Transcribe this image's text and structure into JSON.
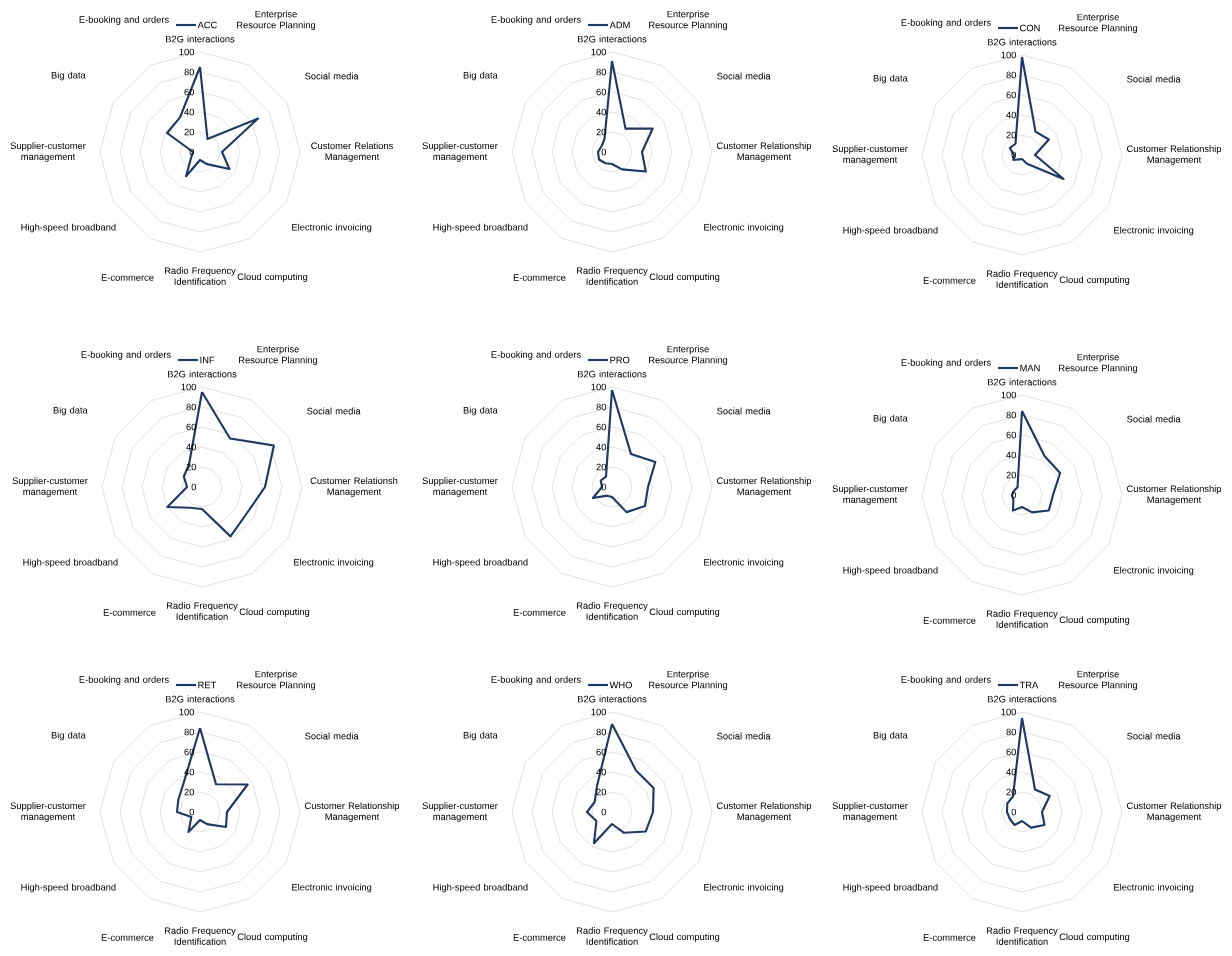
{
  "chart_data": [
    {
      "type": "radar",
      "categories": [
        "B2G interactions",
        "Enterprise Resource Planning",
        "Social media",
        "Customer Relations Management",
        "Electronic invoicing",
        "Cloud computing",
        "Radio Frequency Identification",
        "E-commerce",
        "High-speed broadband",
        "Supplier-customer management",
        "Big data",
        "E-booking and orders"
      ],
      "series": [
        {
          "name": "ACC",
          "color": "#1f3864",
          "values": [
            85,
            15,
            67,
            22,
            34,
            14,
            8,
            28,
            10,
            7,
            38,
            40
          ]
        }
      ],
      "ylim": [
        0,
        100
      ],
      "yticks": [
        0,
        20,
        40,
        60,
        80,
        100
      ],
      "grid": true,
      "legend": "top"
    },
    {
      "type": "radar",
      "categories": [
        "B2G interactions",
        "Enterprise Resource Planning",
        "Social media",
        "Customer Relationship Management",
        "Electronic invoicing",
        "Cloud computing",
        "Radio Frequency Identification",
        "E-commerce",
        "High-speed broadband",
        "Supplier-customer management",
        "Big data",
        "E-booking and orders"
      ],
      "series": [
        {
          "name": "ADM",
          "color": "#1f3864",
          "values": [
            91,
            27,
            47,
            30,
            39,
            20,
            12,
            13,
            15,
            14,
            12,
            15
          ]
        }
      ],
      "ylim": [
        0,
        100
      ],
      "yticks": [
        0,
        20,
        40,
        60,
        80,
        100
      ],
      "grid": true,
      "legend": "top"
    },
    {
      "type": "radar",
      "categories": [
        "B2G interactions",
        "Enterprise Resource Planning",
        "Social media",
        "Customer Relationship Management",
        "Electronic invoicing",
        "Cloud computing",
        "Radio Frequency Identification",
        "E-commerce",
        "High-speed broadband",
        "Supplier-customer management",
        "Big data",
        "E-booking and orders"
      ],
      "series": [
        {
          "name": "CON",
          "color": "#1f3864",
          "values": [
            98,
            27,
            31,
            13,
            48,
            10,
            4,
            5,
            10,
            8,
            14,
            13
          ]
        }
      ],
      "ylim": [
        0,
        100
      ],
      "yticks": [
        0,
        20,
        40,
        60,
        80,
        100
      ],
      "grid": true,
      "legend": "top"
    },
    {
      "type": "radar",
      "categories": [
        "B2G interactions",
        "Enterprise Resource Planning",
        "Social media",
        "Customer Relationsh Management",
        "Electronic invoicing",
        "Cloud computing",
        "Radio Frequency Identification",
        "E-commerce",
        "High-speed broadband",
        "Supplier-customer management",
        "Big data",
        "E-booking and orders"
      ],
      "series": [
        {
          "name": "INF",
          "color": "#1f3864",
          "values": [
            95,
            56,
            83,
            63,
            52,
            57,
            22,
            24,
            40,
            15,
            21,
            26
          ]
        }
      ],
      "ylim": [
        0,
        100
      ],
      "yticks": [
        0,
        20,
        40,
        60,
        80,
        100
      ],
      "grid": true,
      "legend": "top"
    },
    {
      "type": "radar",
      "categories": [
        "B2G interactions",
        "Enterprise Resource Planning",
        "Social media",
        "Customer Relationship Management",
        "Electronic invoicing",
        "Cloud computing",
        "Radio Frequency Identification",
        "E-commerce",
        "High-speed broadband",
        "Supplier-customer management",
        "Big data",
        "E-booking and orders"
      ],
      "series": [
        {
          "name": "PRO",
          "color": "#1f3864",
          "values": [
            97,
            38,
            50,
            36,
            38,
            29,
            10,
            10,
            22,
            10,
            13,
            12
          ]
        }
      ],
      "ylim": [
        0,
        100
      ],
      "yticks": [
        0,
        20,
        40,
        60,
        80,
        100
      ],
      "grid": true,
      "legend": "top"
    },
    {
      "type": "radar",
      "categories": [
        "B2G interactions",
        "Enterprise Resource Planning",
        "Social media",
        "Customer Relationship Management",
        "Electronic invoicing",
        "Cloud computing",
        "Radio Frequency Identification",
        "E-commerce",
        "High-speed broadband",
        "Supplier-customer management",
        "Big data",
        "E-booking and orders"
      ],
      "series": [
        {
          "name": "MAN",
          "color": "#1f3864",
          "values": [
            84,
            45,
            44,
            31,
            31,
            20,
            12,
            18,
            10,
            10,
            9,
            9
          ]
        }
      ],
      "ylim": [
        0,
        100
      ],
      "yticks": [
        0,
        20,
        40,
        60,
        80,
        100
      ],
      "grid": true,
      "legend": "top"
    },
    {
      "type": "radar",
      "categories": [
        "B2G interactions",
        "Enterprise Resource Planning",
        "Social media",
        "Customer Relationship Management",
        "Electronic invoicing",
        "Cloud computing",
        "Radio Frequency Identification",
        "E-commerce",
        "High-speed broadband",
        "Supplier-customer management",
        "Big data",
        "E-booking and orders"
      ],
      "series": [
        {
          "name": "RET",
          "color": "#1f3864",
          "values": [
            84,
            32,
            55,
            27,
            30,
            14,
            8,
            23,
            10,
            23,
            25,
            33
          ]
        }
      ],
      "ylim": [
        0,
        100
      ],
      "yticks": [
        0,
        20,
        40,
        60,
        80,
        100
      ],
      "grid": true,
      "legend": "top"
    },
    {
      "type": "radar",
      "categories": [
        "B2G interactions",
        "Enterprise Resource Planning",
        "Social media",
        "Customer Relationship Management",
        "Electronic invoicing",
        "Cloud computing",
        "Radio Frequency Identification",
        "E-commerce",
        "High-speed broadband",
        "Supplier-customer management",
        "Big data",
        "E-booking and orders"
      ],
      "series": [
        {
          "name": "WHO",
          "color": "#1f3864",
          "values": [
            88,
            48,
            48,
            41,
            39,
            24,
            12,
            36,
            18,
            25,
            20,
            30
          ]
        }
      ],
      "ylim": [
        0,
        100
      ],
      "yticks": [
        0,
        20,
        40,
        60,
        80,
        100
      ],
      "grid": true,
      "legend": "top"
    },
    {
      "type": "radar",
      "categories": [
        "B2G interactions",
        "Enterprise Resource Planning",
        "Social media",
        "Customer Relationship Management",
        "Electronic invoicing",
        "Cloud computing",
        "Radio Frequency Identification",
        "E-commerce",
        "High-speed broadband",
        "Supplier-customer management",
        "Big data",
        "E-booking and orders"
      ],
      "series": [
        {
          "name": "TRA",
          "color": "#1f3864",
          "values": [
            94,
            26,
            32,
            20,
            26,
            18,
            9,
            15,
            14,
            15,
            17,
            18
          ]
        }
      ],
      "ylim": [
        0,
        100
      ],
      "yticks": [
        0,
        20,
        40,
        60,
        80,
        100
      ],
      "grid": true,
      "legend": "top"
    }
  ]
}
